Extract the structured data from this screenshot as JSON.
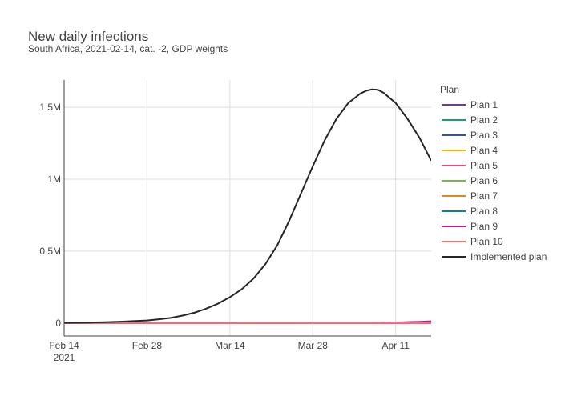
{
  "chart_data": {
    "type": "line",
    "title": "New daily infections",
    "subtitle": "South Africa, 2021-02-14, cat. -2, GDP weights",
    "xlabel": "",
    "ylabel": "",
    "x_range": [
      "2021-02-14",
      "2021-04-17"
    ],
    "ylim": [
      -90000,
      1690000
    ],
    "x_ticks": [
      {
        "date": "2021-02-14",
        "label": "Feb 14",
        "sublabel": "2021"
      },
      {
        "date": "2021-02-28",
        "label": "Feb 28",
        "sublabel": ""
      },
      {
        "date": "2021-03-14",
        "label": "Mar 14",
        "sublabel": ""
      },
      {
        "date": "2021-03-28",
        "label": "Mar 28",
        "sublabel": ""
      },
      {
        "date": "2021-04-11",
        "label": "Apr 11",
        "sublabel": ""
      }
    ],
    "y_ticks": [
      {
        "value": 0,
        "label": "0"
      },
      {
        "value": 500000,
        "label": "0.5M"
      },
      {
        "value": 1000000,
        "label": "1M"
      },
      {
        "value": 1500000,
        "label": "1.5M"
      }
    ],
    "grid": true,
    "legend": {
      "title": "Plan",
      "position": "right"
    },
    "series": [
      {
        "name": "Plan 1",
        "color": "#6b3d8a",
        "x": [
          "2021-02-14",
          "2021-04-17"
        ],
        "values": [
          0,
          0
        ]
      },
      {
        "name": "Plan 2",
        "color": "#1a9c7a",
        "x": [
          "2021-02-14",
          "2021-04-17"
        ],
        "values": [
          0,
          0
        ]
      },
      {
        "name": "Plan 3",
        "color": "#34558b",
        "x": [
          "2021-02-14",
          "2021-04-17"
        ],
        "values": [
          0,
          0
        ]
      },
      {
        "name": "Plan 4",
        "color": "#f2b600",
        "x": [
          "2021-02-14",
          "2021-04-17"
        ],
        "values": [
          0,
          0
        ]
      },
      {
        "name": "Plan 5",
        "color": "#e04e7a",
        "x": [
          "2021-02-14",
          "2021-04-09",
          "2021-04-17"
        ],
        "values": [
          0,
          0,
          0
        ]
      },
      {
        "name": "Plan 6",
        "color": "#77b74a",
        "x": [
          "2021-02-14",
          "2021-04-17"
        ],
        "values": [
          0,
          0
        ]
      },
      {
        "name": "Plan 7",
        "color": "#d98c1c",
        "x": [
          "2021-02-14",
          "2021-04-17"
        ],
        "values": [
          0,
          0
        ]
      },
      {
        "name": "Plan 8",
        "color": "#00868b",
        "x": [
          "2021-02-14",
          "2021-04-17"
        ],
        "values": [
          0,
          0
        ]
      },
      {
        "name": "Plan 9",
        "color": "#c0198c",
        "x": [
          "2021-02-14",
          "2021-04-07",
          "2021-04-11",
          "2021-04-15",
          "2021-04-17"
        ],
        "values": [
          0,
          1000,
          4000,
          9000,
          12000
        ]
      },
      {
        "name": "Plan 10",
        "color": "#f57070",
        "x": [
          "2021-02-14",
          "2021-04-17"
        ],
        "values": [
          0,
          0
        ]
      },
      {
        "name": "Implemented plan",
        "color": "#262626",
        "x": [
          "2021-02-14",
          "2021-02-16",
          "2021-02-18",
          "2021-02-20",
          "2021-02-22",
          "2021-02-24",
          "2021-02-26",
          "2021-02-28",
          "2021-03-02",
          "2021-03-04",
          "2021-03-06",
          "2021-03-08",
          "2021-03-10",
          "2021-03-12",
          "2021-03-14",
          "2021-03-16",
          "2021-03-18",
          "2021-03-20",
          "2021-03-22",
          "2021-03-24",
          "2021-03-26",
          "2021-03-28",
          "2021-03-30",
          "2021-04-01",
          "2021-04-03",
          "2021-04-05",
          "2021-04-06",
          "2021-04-07",
          "2021-04-08",
          "2021-04-09",
          "2021-04-11",
          "2021-04-13",
          "2021-04-15",
          "2021-04-17"
        ],
        "values": [
          2000,
          2500,
          3500,
          5000,
          7000,
          10000,
          14000,
          18000,
          26000,
          36000,
          52000,
          72000,
          100000,
          135000,
          180000,
          235000,
          310000,
          410000,
          540000,
          710000,
          900000,
          1090000,
          1270000,
          1420000,
          1530000,
          1595000,
          1615000,
          1625000,
          1622000,
          1600000,
          1530000,
          1420000,
          1290000,
          1130000
        ]
      }
    ]
  }
}
